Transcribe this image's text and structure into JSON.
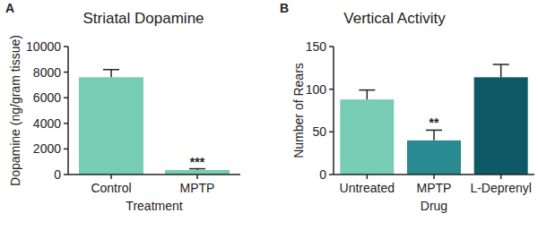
{
  "chart_data": [
    {
      "type": "bar",
      "label": "A",
      "title": "Striatal Dopamine",
      "x_label": "Treatment",
      "y_label": "Dopamine (ng/gram tissue)",
      "categories": [
        "Control",
        "MPTP"
      ],
      "values": [
        7600,
        350
      ],
      "errors": [
        600,
        100
      ],
      "significance": [
        null,
        "***"
      ],
      "colors": [
        "#76cdb3",
        "#76cdb3"
      ],
      "ylim": [
        0,
        10000
      ],
      "yticks": [
        0,
        2000,
        4000,
        6000,
        8000,
        10000
      ],
      "grid": false
    },
    {
      "type": "bar",
      "label": "B",
      "title": "Vertical Activity",
      "x_label": "Drug",
      "y_label": "Number of Rears",
      "categories": [
        "Untreated",
        "MPTP",
        "L-Deprenyl"
      ],
      "values": [
        88,
        40,
        114
      ],
      "errors": [
        11,
        12,
        15
      ],
      "significance": [
        null,
        "**",
        null
      ],
      "colors": [
        "#76cdb3",
        "#2a8a91",
        "#0e5966"
      ],
      "ylim": [
        0,
        150
      ],
      "yticks": [
        0,
        50,
        100,
        150
      ],
      "grid": false
    }
  ]
}
